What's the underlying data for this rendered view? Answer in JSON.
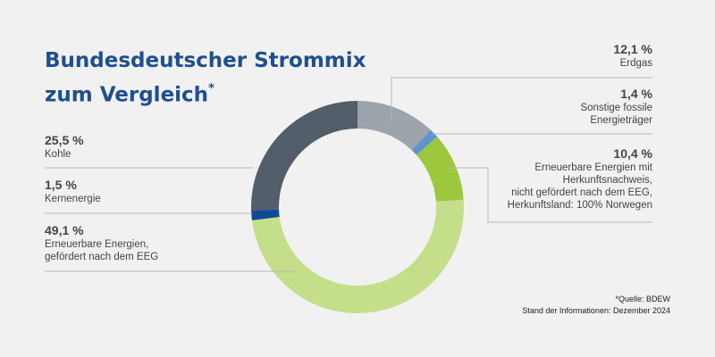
{
  "title_line1": "Bundesdeutscher Strommix",
  "title_line2": "zum Vergleich",
  "title_mark": "*",
  "chart_data": {
    "type": "pie",
    "variant": "donut",
    "slices": [
      {
        "value": 12.1,
        "pct_label": "12,1 %",
        "label_lines": [
          "Erdgas"
        ],
        "color": "#9ea4ab",
        "side": "right"
      },
      {
        "value": 1.4,
        "pct_label": "1,4 %",
        "label_lines": [
          "Sonstige fossile",
          "Energieträger"
        ],
        "color": "#5f95cc",
        "side": "right"
      },
      {
        "value": 10.4,
        "pct_label": "10,4 %",
        "label_lines": [
          "Erneuerbare Energien mit",
          "Herkunftsnachweis,",
          "nicht gefördert nach dem EEG,",
          "Herkunftsland: 100% Norwegen"
        ],
        "color": "#9dc83d",
        "side": "right"
      },
      {
        "value": 49.1,
        "pct_label": "49,1 %",
        "label_lines": [
          "Erneuerbare Energien,",
          "gefördert nach dem EEG"
        ],
        "color": "#c5de8a",
        "side": "left"
      },
      {
        "value": 1.5,
        "pct_label": "1,5 %",
        "label_lines": [
          "Kernenergie"
        ],
        "color": "#114b96",
        "side": "left"
      },
      {
        "value": 25.5,
        "pct_label": "25,5 %",
        "label_lines": [
          "Kohle"
        ],
        "color": "#535e6b",
        "side": "left"
      }
    ]
  },
  "footnote_line1": "*Quelle: BDEW",
  "footnote_line2": "Stand der Informationen: Dezember 2024"
}
